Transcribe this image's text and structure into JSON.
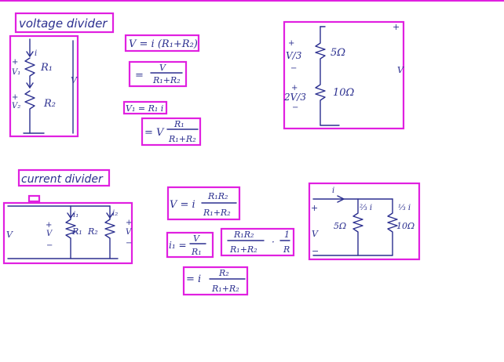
{
  "colors": {
    "ink": "#2b2f8f",
    "highlight": "#e020e0"
  },
  "headings": {
    "voltage": "voltage divider",
    "current": "current divider"
  },
  "voltage_circuit": {
    "plus": "+",
    "v1": "V₁",
    "v2": "V₂",
    "r1": "R₁",
    "r2": "R₂",
    "i": "i",
    "v": "V"
  },
  "voltage_eqs": {
    "eq1": "V = i (R₁+R₂)",
    "eq2_num": "V",
    "eq2_den": "R₁+R₂",
    "eq2_lhs": "=",
    "eq3": "V₁ = R₁ i",
    "eq4_lhs": "= V",
    "eq4_num": "R₁",
    "eq4_den": "R₁+R₂"
  },
  "voltage_example": {
    "plus": "+",
    "minus": "−",
    "v3": "V/3",
    "v23": "2V/3",
    "r5": "5Ω",
    "r10": "10Ω",
    "v": "V"
  },
  "current_circuit": {
    "plus": "+",
    "minus": "−",
    "v": "V",
    "i1": "i₁",
    "i2": "i₂",
    "r1": "R₁",
    "r2": "R₂"
  },
  "current_eqs": {
    "eq1_lhs": "V = i",
    "eq1_num": "R₁R₂",
    "eq1_den": "R₁+R₂",
    "eq2_lhs": "i₁ =",
    "eq2_num": "V",
    "eq2_den": "R₁",
    "eq3_num": "R₁R₂",
    "eq3_den": "R₁+R₂",
    "eq3_dot": "·",
    "eq3_num2": "1",
    "eq3_den2": "R",
    "eq4_lhs": "= i",
    "eq4_num": "R₂",
    "eq4_den": "R₁+R₂"
  },
  "current_example": {
    "i": "i",
    "i23": "⅔ i",
    "i13": "⅓ i",
    "r5": "5Ω",
    "r10": "10Ω",
    "plus": "+",
    "minus": "−",
    "v": "V"
  }
}
